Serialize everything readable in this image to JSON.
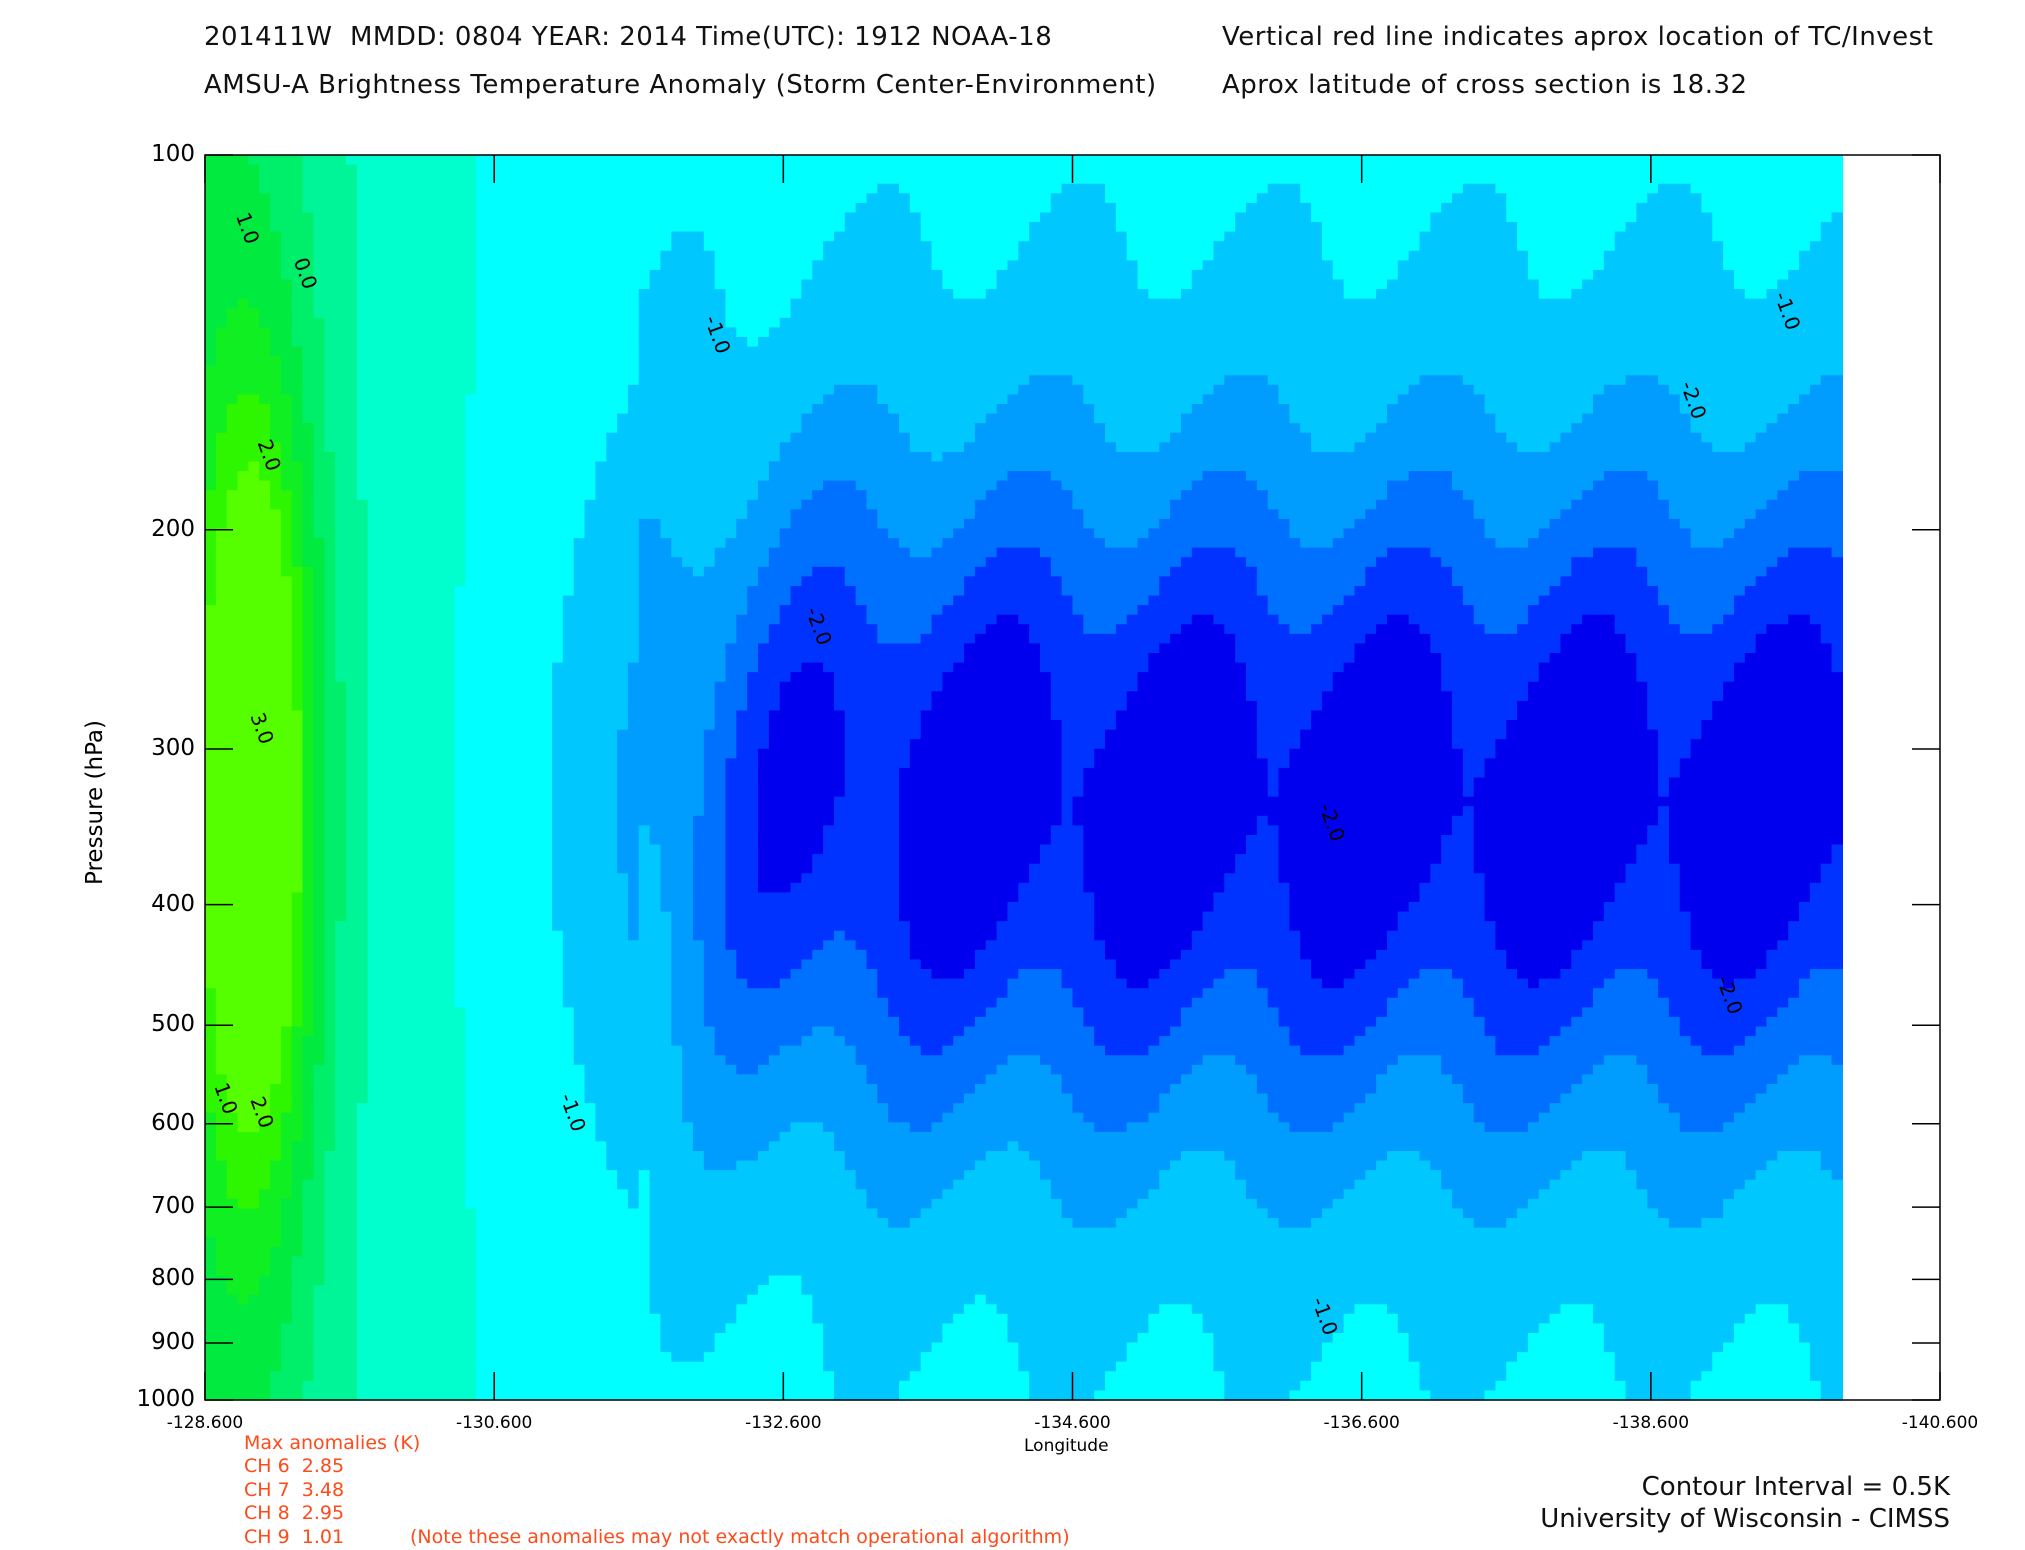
{
  "header": {
    "line1_left": "201411W  MMDD: 0804 YEAR: 2014 Time(UTC): 1912 NOAA-18",
    "line2_left": "AMSU-A Brightness Temperature Anomaly (Storm Center-Environment)",
    "line1_right": "Vertical red line indicates aprox location of TC/Invest",
    "line2_right": "Aprox latitude of cross section is 18.32"
  },
  "anomalies": {
    "title": "Max anomalies (K)",
    "channels": [
      {
        "label": "CH 6",
        "value": "2.85"
      },
      {
        "label": "CH 7",
        "value": "3.48"
      },
      {
        "label": "CH 8",
        "value": "2.95"
      },
      {
        "label": "CH 9",
        "value": "1.01"
      }
    ],
    "note": "(Note these anomalies may not exactly match operational algorithm)"
  },
  "footer": {
    "contour_interval": "Contour Interval = 0.5K",
    "credit": "University of Wisconsin - CIMSS"
  },
  "chart_data": {
    "type": "heatmap",
    "title": "AMSU-A Brightness Temperature Anomaly (Storm Center-Environment)",
    "xlabel": "Longitude",
    "ylabel": "Pressure (hPa)",
    "xlim": [
      -128.6,
      -140.6
    ],
    "ylim": [
      1000,
      100
    ],
    "y_scale": "log",
    "x_ticks": [
      "-128.600",
      "-130.600",
      "-132.600",
      "-134.600",
      "-136.600",
      "-138.600",
      "-140.600"
    ],
    "x_tick_values": [
      -128.6,
      -130.6,
      -132.6,
      -134.6,
      -136.6,
      -138.6,
      -140.6
    ],
    "y_ticks": [
      "100",
      "200",
      "300",
      "400",
      "500",
      "600",
      "700",
      "800",
      "900",
      "1000"
    ],
    "y_tick_values": [
      100,
      200,
      300,
      400,
      500,
      600,
      700,
      800,
      900,
      1000
    ],
    "contour_interval_K": 0.5,
    "contour_labels": [
      {
        "text": "1.0",
        "lon": -128.85,
        "p": 115
      },
      {
        "text": "0.0",
        "lon": -129.25,
        "p": 125
      },
      {
        "text": "2.0",
        "lon": -129.0,
        "p": 175
      },
      {
        "text": "3.0",
        "lon": -128.95,
        "p": 290
      },
      {
        "text": "1.0",
        "lon": -128.7,
        "p": 575
      },
      {
        "text": "2.0",
        "lon": -128.95,
        "p": 590
      },
      {
        "text": "-1.0",
        "lon": -132.1,
        "p": 140
      },
      {
        "text": "-1.0",
        "lon": -139.5,
        "p": 134
      },
      {
        "text": "-2.0",
        "lon": -138.85,
        "p": 158
      },
      {
        "text": "-2.0",
        "lon": -132.8,
        "p": 240
      },
      {
        "text": "-2.0",
        "lon": -136.35,
        "p": 345
      },
      {
        "text": "-2.0",
        "lon": -139.1,
        "p": 475
      },
      {
        "text": "-1.0",
        "lon": -131.1,
        "p": 590
      },
      {
        "text": "-1.0",
        "lon": -136.3,
        "p": 860
      }
    ],
    "fill_levels": [
      {
        "level": "<-2.5",
        "color": "#0000ee"
      },
      {
        "level": "-2.5 to -2.0",
        "color": "#0033ff"
      },
      {
        "level": "-2.0 to -1.5",
        "color": "#0070ff"
      },
      {
        "level": "-1.5 to -1.0",
        "color": "#009dff"
      },
      {
        "level": "-1.0 to -0.5",
        "color": "#00c8ff"
      },
      {
        "level": "-0.5 to 0.0",
        "color": "#00ffff"
      },
      {
        "level": "0.0 to 0.5",
        "color": "#00ffcc"
      },
      {
        "level": "0.5 to 1.0",
        "color": "#00f598"
      },
      {
        "level": "1.0 to 1.5",
        "color": "#00ef6a"
      },
      {
        "level": "1.5 to 2.0",
        "color": "#00ea40"
      },
      {
        "level": "2.0 to 2.5",
        "color": "#10ef22"
      },
      {
        "level": "2.5 to 3.0",
        "color": "#2ef500"
      },
      {
        "level": ">3.0",
        "color": "#55ff00"
      }
    ],
    "tc_marker": "none visible"
  }
}
